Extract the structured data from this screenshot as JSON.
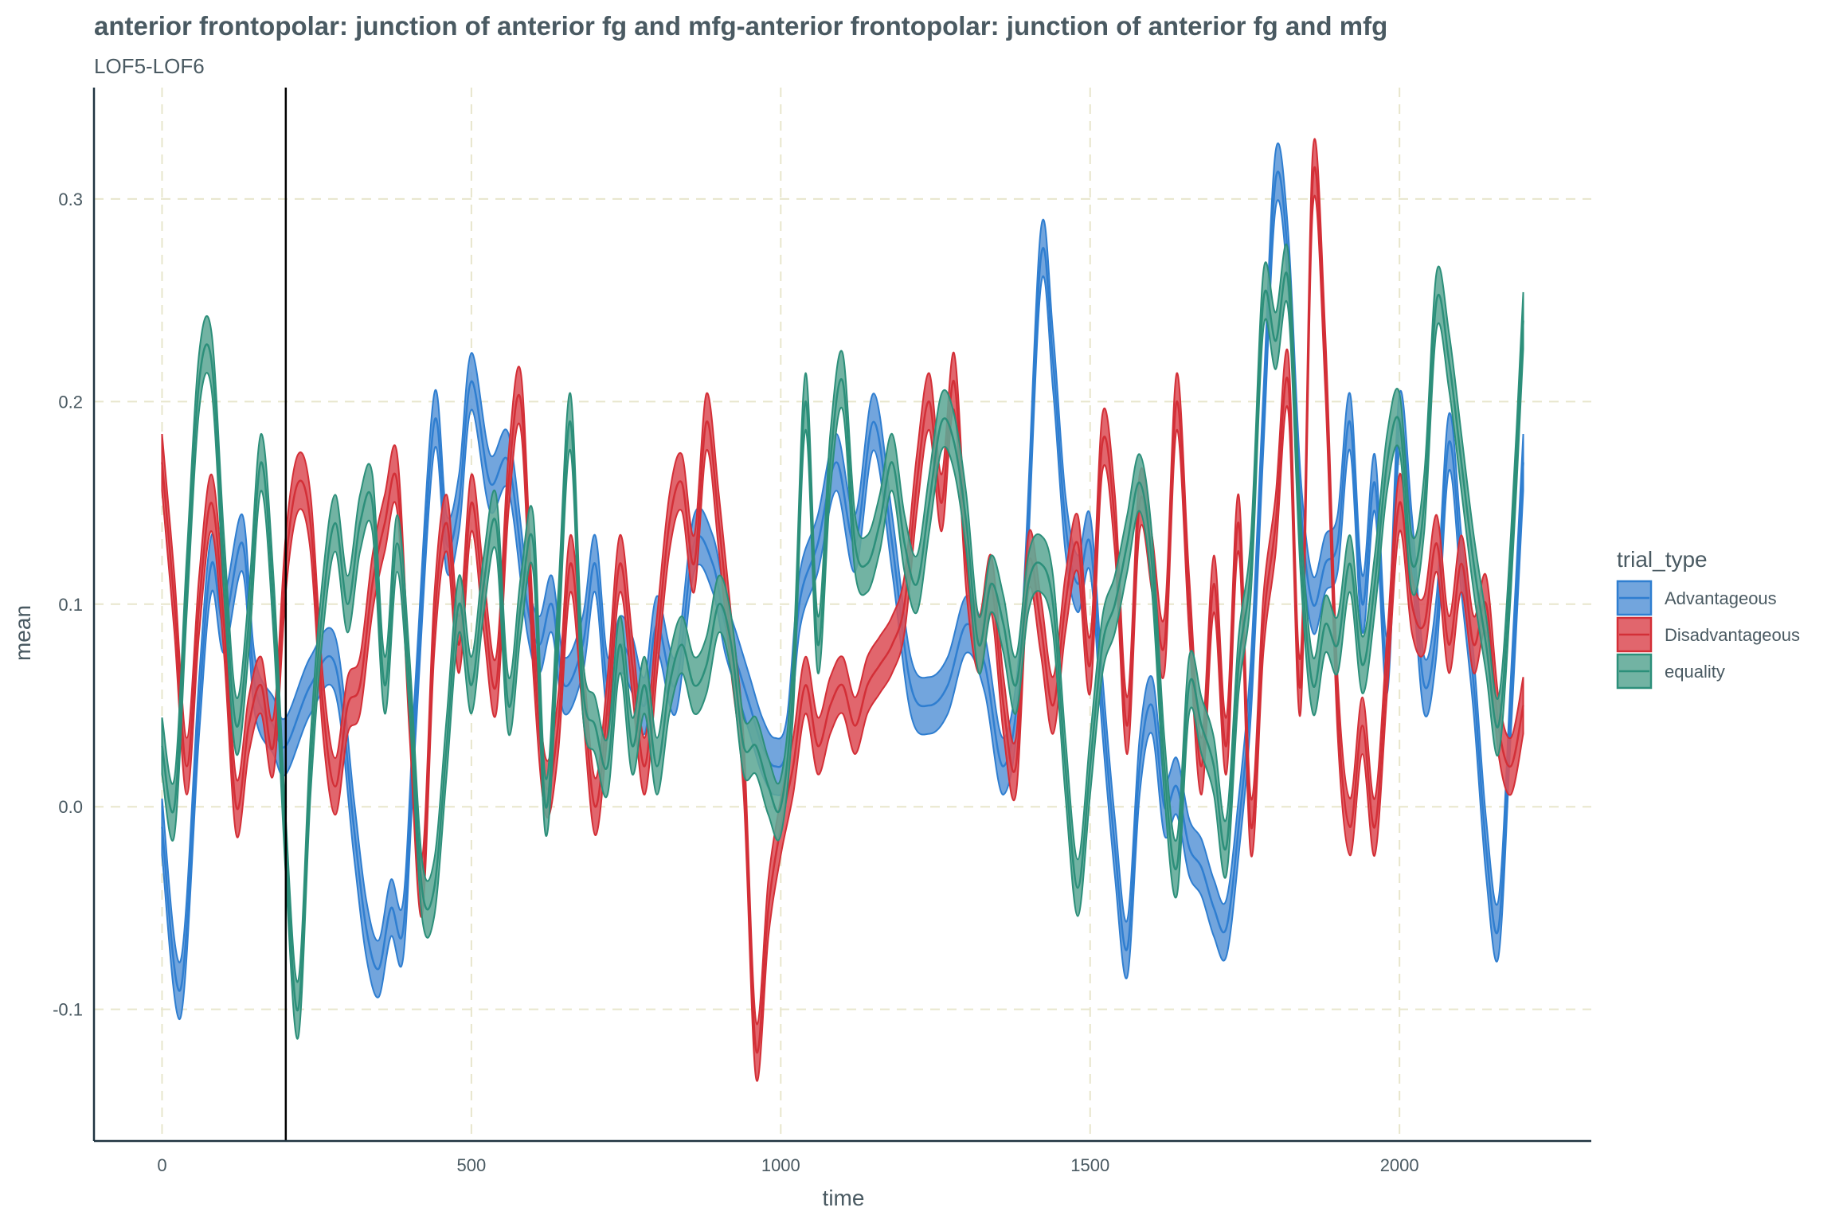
{
  "chart_data": {
    "type": "area",
    "title": "anterior frontopolar: junction of anterior fg and mfg-anterior frontopolar: junction of anterior fg and mfg",
    "subtitle": "LOF5-LOF6",
    "xlabel": "time",
    "ylabel": "mean",
    "xlim": [
      -110,
      2310
    ],
    "ylim": [
      -0.165,
      0.355
    ],
    "x_ticks": [
      0,
      500,
      1000,
      1500,
      2000
    ],
    "x_tick_labels": [
      "0",
      "500",
      "1000",
      "1500",
      "2000"
    ],
    "y_ticks": [
      -0.1,
      0.0,
      0.1,
      0.2,
      0.3
    ],
    "y_tick_labels": [
      "-0.1",
      "0.0",
      "0.1",
      "0.2",
      "0.3"
    ],
    "grid": true,
    "vline_x": 200,
    "legend": {
      "title": "trial_type",
      "position": "right"
    },
    "band_half_width": 0.014,
    "series": [
      {
        "name": "Advantageous",
        "color": "#2f7ed0",
        "fill": "#5f98d8",
        "x": [
          0,
          30,
          60,
          80,
          100,
          130,
          150,
          180,
          200,
          240,
          280,
          310,
          330,
          350,
          370,
          390,
          410,
          440,
          460,
          480,
          500,
          530,
          560,
          590,
          610,
          630,
          650,
          680,
          700,
          720,
          740,
          760,
          780,
          800,
          830,
          860,
          890,
          910,
          930,
          950,
          970,
          990,
          1010,
          1030,
          1060,
          1090,
          1120,
          1150,
          1180,
          1210,
          1240,
          1270,
          1300,
          1330,
          1360,
          1390,
          1420,
          1440,
          1460,
          1480,
          1500,
          1520,
          1540,
          1560,
          1580,
          1600,
          1620,
          1640,
          1660,
          1680,
          1700,
          1720,
          1740,
          1760,
          1780,
          1800,
          1820,
          1840,
          1860,
          1880,
          1900,
          1920,
          1940,
          1960,
          1980,
          2000,
          2020,
          2040,
          2060,
          2080,
          2100,
          2120,
          2140,
          2160,
          2180,
          2200
        ],
        "mean": [
          -0.01,
          -0.09,
          0.05,
          0.12,
          0.09,
          0.13,
          0.06,
          0.04,
          0.03,
          0.06,
          0.07,
          -0.01,
          -0.06,
          -0.08,
          -0.05,
          -0.06,
          0.05,
          0.19,
          0.13,
          0.15,
          0.21,
          0.16,
          0.17,
          0.1,
          0.08,
          0.1,
          0.06,
          0.08,
          0.12,
          0.06,
          0.08,
          0.07,
          0.05,
          0.09,
          0.06,
          0.13,
          0.12,
          0.09,
          0.07,
          0.05,
          0.03,
          0.02,
          0.03,
          0.1,
          0.13,
          0.17,
          0.13,
          0.19,
          0.13,
          0.06,
          0.05,
          0.06,
          0.09,
          0.07,
          0.02,
          0.08,
          0.27,
          0.22,
          0.14,
          0.11,
          0.13,
          0.05,
          -0.02,
          -0.07,
          0.02,
          0.05,
          0.0,
          0.01,
          -0.02,
          -0.03,
          -0.05,
          -0.06,
          -0.01,
          0.06,
          0.19,
          0.31,
          0.27,
          0.15,
          0.1,
          0.12,
          0.13,
          0.19,
          0.1,
          0.16,
          0.07,
          0.19,
          0.13,
          0.06,
          0.09,
          0.18,
          0.12,
          0.06,
          -0.02,
          -0.06,
          0.05,
          0.17
        ]
      },
      {
        "name": "Disadvantageous",
        "color": "#d32f37",
        "fill": "#dd5159",
        "x": [
          0,
          20,
          40,
          60,
          80,
          100,
          120,
          140,
          160,
          180,
          200,
          220,
          240,
          260,
          280,
          300,
          320,
          340,
          360,
          380,
          400,
          420,
          440,
          460,
          480,
          500,
          520,
          540,
          560,
          580,
          600,
          620,
          640,
          660,
          680,
          700,
          720,
          740,
          760,
          780,
          800,
          820,
          840,
          860,
          880,
          900,
          920,
          940,
          960,
          980,
          1000,
          1020,
          1040,
          1060,
          1080,
          1100,
          1120,
          1140,
          1160,
          1180,
          1200,
          1220,
          1240,
          1260,
          1280,
          1300,
          1320,
          1340,
          1360,
          1380,
          1400,
          1420,
          1440,
          1460,
          1480,
          1500,
          1520,
          1540,
          1560,
          1580,
          1600,
          1620,
          1640,
          1660,
          1680,
          1700,
          1720,
          1740,
          1760,
          1780,
          1800,
          1820,
          1840,
          1860,
          1880,
          1900,
          1920,
          1940,
          1960,
          1980,
          2000,
          2020,
          2040,
          2060,
          2080,
          2100,
          2120,
          2140,
          2160,
          2180,
          2200
        ],
        "mean": [
          0.17,
          0.1,
          0.02,
          0.1,
          0.15,
          0.09,
          0.0,
          0.04,
          0.06,
          0.03,
          0.12,
          0.16,
          0.14,
          0.05,
          0.01,
          0.05,
          0.06,
          0.11,
          0.14,
          0.16,
          0.05,
          -0.04,
          0.09,
          0.14,
          0.08,
          0.15,
          0.1,
          0.06,
          0.16,
          0.2,
          0.08,
          0.01,
          0.04,
          0.12,
          0.06,
          0.0,
          0.05,
          0.12,
          0.07,
          0.02,
          0.08,
          0.14,
          0.16,
          0.12,
          0.19,
          0.14,
          0.08,
          0.02,
          -0.12,
          -0.05,
          -0.01,
          0.02,
          0.06,
          0.03,
          0.05,
          0.06,
          0.04,
          0.06,
          0.07,
          0.08,
          0.1,
          0.16,
          0.2,
          0.15,
          0.21,
          0.12,
          0.08,
          0.11,
          0.05,
          0.02,
          0.12,
          0.09,
          0.05,
          0.1,
          0.13,
          0.07,
          0.18,
          0.14,
          0.04,
          0.15,
          0.12,
          0.08,
          0.2,
          0.1,
          0.02,
          0.11,
          0.03,
          0.14,
          -0.01,
          0.09,
          0.14,
          0.21,
          0.06,
          0.31,
          0.22,
          0.05,
          -0.01,
          0.04,
          -0.01,
          0.07,
          0.15,
          0.1,
          0.09,
          0.13,
          0.08,
          0.12,
          0.08,
          0.1,
          0.04,
          0.02,
          0.05
        ]
      },
      {
        "name": "equality",
        "color": "#2c8f7a",
        "fill": "#5ea896",
        "x": [
          0,
          20,
          40,
          60,
          80,
          100,
          120,
          140,
          160,
          180,
          200,
          220,
          240,
          260,
          280,
          300,
          320,
          340,
          360,
          380,
          400,
          420,
          440,
          460,
          480,
          500,
          520,
          540,
          560,
          580,
          600,
          620,
          640,
          660,
          680,
          700,
          720,
          740,
          760,
          780,
          800,
          820,
          840,
          860,
          880,
          900,
          920,
          940,
          960,
          980,
          1000,
          1020,
          1040,
          1060,
          1080,
          1100,
          1120,
          1140,
          1160,
          1180,
          1200,
          1220,
          1240,
          1260,
          1280,
          1300,
          1320,
          1340,
          1360,
          1380,
          1400,
          1420,
          1440,
          1460,
          1480,
          1500,
          1520,
          1540,
          1560,
          1580,
          1600,
          1620,
          1640,
          1660,
          1680,
          1700,
          1720,
          1740,
          1760,
          1780,
          1800,
          1820,
          1840,
          1860,
          1880,
          1900,
          1920,
          1940,
          1960,
          1980,
          2000,
          2020,
          2040,
          2060,
          2080,
          2100,
          2120,
          2140,
          2160,
          2180,
          2200
        ],
        "mean": [
          0.03,
          0.0,
          0.11,
          0.21,
          0.22,
          0.12,
          0.04,
          0.09,
          0.17,
          0.1,
          -0.02,
          -0.1,
          0.02,
          0.1,
          0.14,
          0.1,
          0.14,
          0.15,
          0.06,
          0.13,
          0.06,
          -0.04,
          -0.04,
          0.03,
          0.1,
          0.06,
          0.11,
          0.14,
          0.05,
          0.1,
          0.13,
          0.0,
          0.09,
          0.19,
          0.06,
          0.04,
          0.02,
          0.08,
          0.03,
          0.06,
          0.02,
          0.06,
          0.08,
          0.06,
          0.07,
          0.1,
          0.08,
          0.03,
          0.03,
          0.01,
          0.0,
          0.06,
          0.2,
          0.08,
          0.17,
          0.21,
          0.13,
          0.12,
          0.14,
          0.17,
          0.13,
          0.11,
          0.15,
          0.19,
          0.18,
          0.14,
          0.08,
          0.11,
          0.09,
          0.06,
          0.11,
          0.12,
          0.1,
          0.02,
          -0.04,
          0.02,
          0.08,
          0.1,
          0.13,
          0.16,
          0.12,
          0.02,
          -0.03,
          0.06,
          0.04,
          0.02,
          -0.02,
          0.07,
          0.12,
          0.25,
          0.23,
          0.26,
          0.13,
          0.06,
          0.09,
          0.08,
          0.12,
          0.07,
          0.11,
          0.17,
          0.19,
          0.12,
          0.15,
          0.25,
          0.22,
          0.17,
          0.12,
          0.08,
          0.04,
          0.12,
          0.24
        ]
      }
    ]
  }
}
